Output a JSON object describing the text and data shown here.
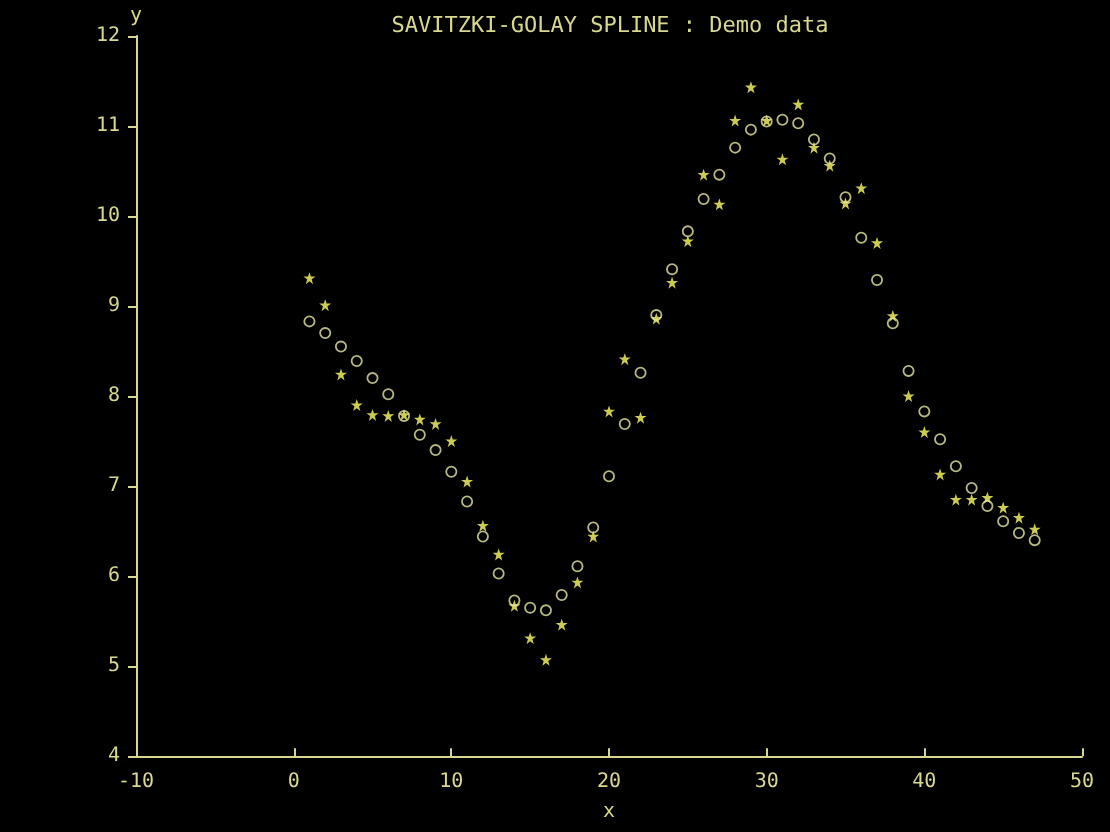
{
  "chart_data": {
    "type": "scatter",
    "title": "SAVITZKI-GOLAY SPLINE : Demo data",
    "xlabel": "x",
    "ylabel": "y",
    "x": [
      1,
      2,
      3,
      4,
      5,
      6,
      7,
      8,
      9,
      10,
      11,
      12,
      13,
      14,
      15,
      16,
      17,
      18,
      19,
      20,
      21,
      22,
      23,
      24,
      25,
      26,
      27,
      28,
      29,
      30,
      31,
      32,
      33,
      34,
      35,
      36,
      37,
      38,
      39,
      40,
      41,
      42,
      43,
      44,
      45,
      46,
      47
    ],
    "series": [
      {
        "color": "#ffff66",
        "marker": "star",
        "values": [
          9.31,
          9.01,
          8.24,
          7.9,
          7.79,
          7.78,
          7.79,
          7.74,
          7.69,
          7.5,
          7.05,
          6.56,
          6.24,
          5.67,
          5.31,
          5.07,
          5.46,
          5.93,
          6.44,
          7.83,
          8.41,
          7.76,
          8.86,
          9.26,
          9.72,
          10.46,
          10.13,
          11.06,
          11.43,
          11.06,
          10.63,
          11.24,
          10.76,
          10.56,
          10.14,
          10.31,
          9.7,
          8.89,
          8.0,
          7.6,
          7.13,
          6.85,
          6.85,
          6.87,
          6.76,
          6.65,
          6.52
        ]
      },
      {
        "color": "#e6e6a0",
        "marker": "circle",
        "values": [
          8.83,
          8.7,
          8.55,
          8.39,
          8.2,
          8.02,
          7.78,
          7.57,
          7.4,
          7.16,
          6.83,
          6.44,
          6.03,
          5.73,
          5.65,
          5.62,
          5.79,
          6.11,
          6.54,
          7.11,
          7.69,
          8.26,
          8.9,
          9.41,
          9.83,
          10.19,
          10.46,
          10.76,
          10.96,
          11.05,
          11.07,
          11.03,
          10.85,
          10.64,
          10.21,
          9.76,
          9.29,
          8.81,
          8.28,
          7.83,
          7.52,
          7.22,
          6.98,
          6.78,
          6.61,
          6.48,
          6.4
        ]
      }
    ],
    "xlim": [
      -10,
      50
    ],
    "xticks": [
      -10,
      0,
      10,
      20,
      30,
      40,
      50
    ],
    "ylim": [
      4,
      12
    ],
    "yticks": [
      4,
      5,
      6,
      7,
      8,
      9,
      10,
      11,
      12
    ],
    "grid": false
  }
}
